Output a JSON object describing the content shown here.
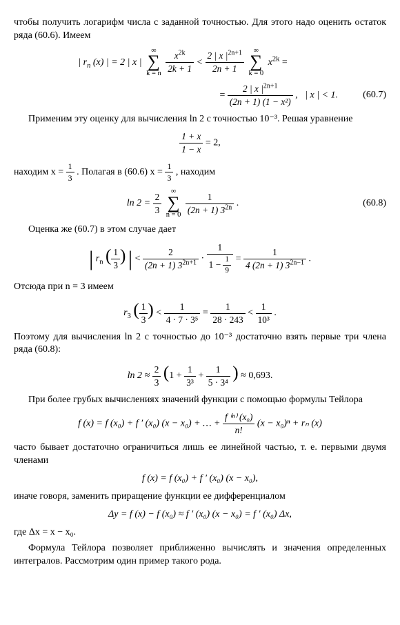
{
  "intro": {
    "p1": "чтобы получить логарифм числа с заданной точностью. Для этого надо оценить остаток ряда (60.6). Имеем"
  },
  "eq1": {
    "lhs_outer": "| r",
    "lhs_sub": "n",
    "lhs_arg": "(x) | = 2 | x |",
    "sum1_above": "∞",
    "sum1_below": "k = n",
    "frac1_num": "x",
    "frac1_num_sup": "2k",
    "frac1_den": "2k + 1",
    "lt": "<",
    "frac2_num": "2 | x |",
    "frac2_num_sup": "2n+1",
    "frac2_den": "2n + 1",
    "sum2_above": "∞",
    "sum2_below": "k = 0",
    "term2": "x",
    "term2_sup": "2k",
    "eq": "=",
    "line2_eq": "=",
    "line2_frac_num": "2 | x |",
    "line2_frac_num_sup": "2n+1",
    "line2_frac_den_a": "(2n + 1)",
    "line2_frac_den_b": "(1 − x²)",
    "comma": ",",
    "cond": "| x | < 1.",
    "num": "(60.7)"
  },
  "para2": {
    "text": "Применим эту оценку для вычисления ln 2 с точностью 10⁻³. Решая уравнение"
  },
  "eq2": {
    "frac_num": "1 + x",
    "frac_den": "1 − x",
    "eq": "= 2,"
  },
  "para3": {
    "a": "находим x =",
    "frac1_num": "1",
    "frac1_den": "3",
    "b": ". Полагая в (60.6) x =",
    "frac2_num": "1",
    "frac2_den": "3",
    "c": ", находим"
  },
  "eq3": {
    "lhs": "ln 2 =",
    "frac_a_num": "2",
    "frac_a_den": "3",
    "sum_above": "∞",
    "sum_below": "n = 0",
    "frac_b_num": "1",
    "frac_b_den_a": "(2n + 1) 3",
    "frac_b_den_sup": "2n",
    "period": ".",
    "num": "(60.8)"
  },
  "para4": {
    "text": "Оценка же (60.7) в этом случае дает"
  },
  "eq4": {
    "r": "r",
    "r_sub": "n",
    "arg_num": "1",
    "arg_den": "3",
    "lt": "<",
    "f1_num": "2",
    "f1_den_a": "(2n + 1) 3",
    "f1_den_sup": "2n+1",
    "dot": "·",
    "f2_num": "1",
    "f2_den_t": "1 −",
    "f2_den_num": "1",
    "f2_den_den": "9",
    "eq": "=",
    "f3_num": "1",
    "f3_den_a": "4 (2n + 1) 3",
    "f3_den_sup": "2n−1",
    "period": "."
  },
  "para5": {
    "text": "Отсюда при n = 3 имеем"
  },
  "eq5": {
    "r": "r",
    "r_sub": "3",
    "arg_num": "1",
    "arg_den": "3",
    "lt": "<",
    "f1_num": "1",
    "f1_den": "4 · 7 · 3⁵",
    "eq": "=",
    "f2_num": "1",
    "f2_den": "28 · 243",
    "lt2": "<",
    "f3_num": "1",
    "f3_den": "10³",
    "period": "."
  },
  "para6": {
    "text": "Поэтому для вычисления ln 2 с точностью до 10⁻³ достаточно взять первые три члена ряда (60.8):"
  },
  "eq6": {
    "lhs": "ln 2 ≈",
    "f_num": "2",
    "f_den": "3",
    "open": "(1 +",
    "t1_num": "1",
    "t1_den": "3³",
    "plus": "+",
    "t2_num": "1",
    "t2_den": "5 · 3⁴",
    "close": ")",
    "approx": "≈ 0,693."
  },
  "para7": {
    "text": "При более грубых вычислениях значений функции с помощью формулы Тейлора"
  },
  "eq7": {
    "text": "f (x) = f (x₀) + f ′ (x₀) (x − x₀) + … +",
    "frac_num": "f ⁽ⁿ⁾ (x₀)",
    "frac_den": "n!",
    "tail": "(x − x₀)ⁿ + rₙ (x)"
  },
  "para8": {
    "text": "часто бывает достаточно ограничиться лишь ее линейной частью, т. е. первыми двумя членами"
  },
  "eq8": {
    "text": "f (x) = f (x₀) + f ′ (x₀) (x − x₀),"
  },
  "para9": {
    "text": "иначе говоря, заменить приращение функции ее дифференциалом"
  },
  "eq9": {
    "text": "Δy = f (x) − f (x₀) ≈ f ′ (x₀) (x − x₀) = f ′ (x₀) Δx,"
  },
  "para10": {
    "text": "где Δx = x − x₀."
  },
  "para11": {
    "text": "Формула Тейлора позволяет приближенно вычислять и значения определенных интегралов. Рассмотрим один пример такого рода."
  }
}
